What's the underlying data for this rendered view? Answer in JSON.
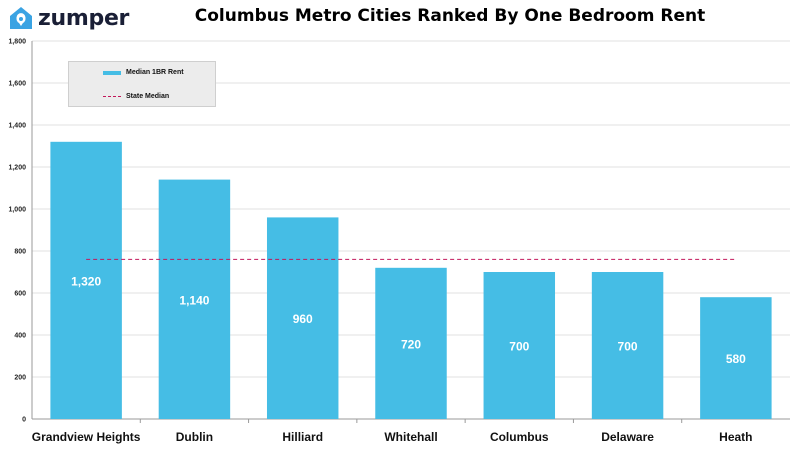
{
  "brand": {
    "name": "zumper",
    "logo_icon": "house-pin-icon",
    "color": "#3aa3e3"
  },
  "chart_data": {
    "type": "bar",
    "title": "Columbus Metro Cities Ranked By One Bedroom Rent",
    "categories": [
      "Grandview Heights",
      "Dublin",
      "Hilliard",
      "Whitehall",
      "Columbus",
      "Delaware",
      "Heath"
    ],
    "series": [
      {
        "name": "Median 1BR Rent",
        "values": [
          1320,
          1140,
          960,
          720,
          700,
          700,
          580
        ],
        "color": "#45bde5"
      }
    ],
    "data_labels": [
      "1,320",
      "1,140",
      "960",
      "720",
      "700",
      "700",
      "580"
    ],
    "reference_line": {
      "name": "State Median",
      "value": 760,
      "color": "#c2185b",
      "style": "dashed"
    },
    "yticks": [
      "0",
      "200",
      "400",
      "600",
      "800",
      "1,000",
      "1,200",
      "1,400",
      "1,600",
      "1,800"
    ],
    "ylim": [
      0,
      1800
    ],
    "grid": true,
    "legend_position": "top-left"
  }
}
